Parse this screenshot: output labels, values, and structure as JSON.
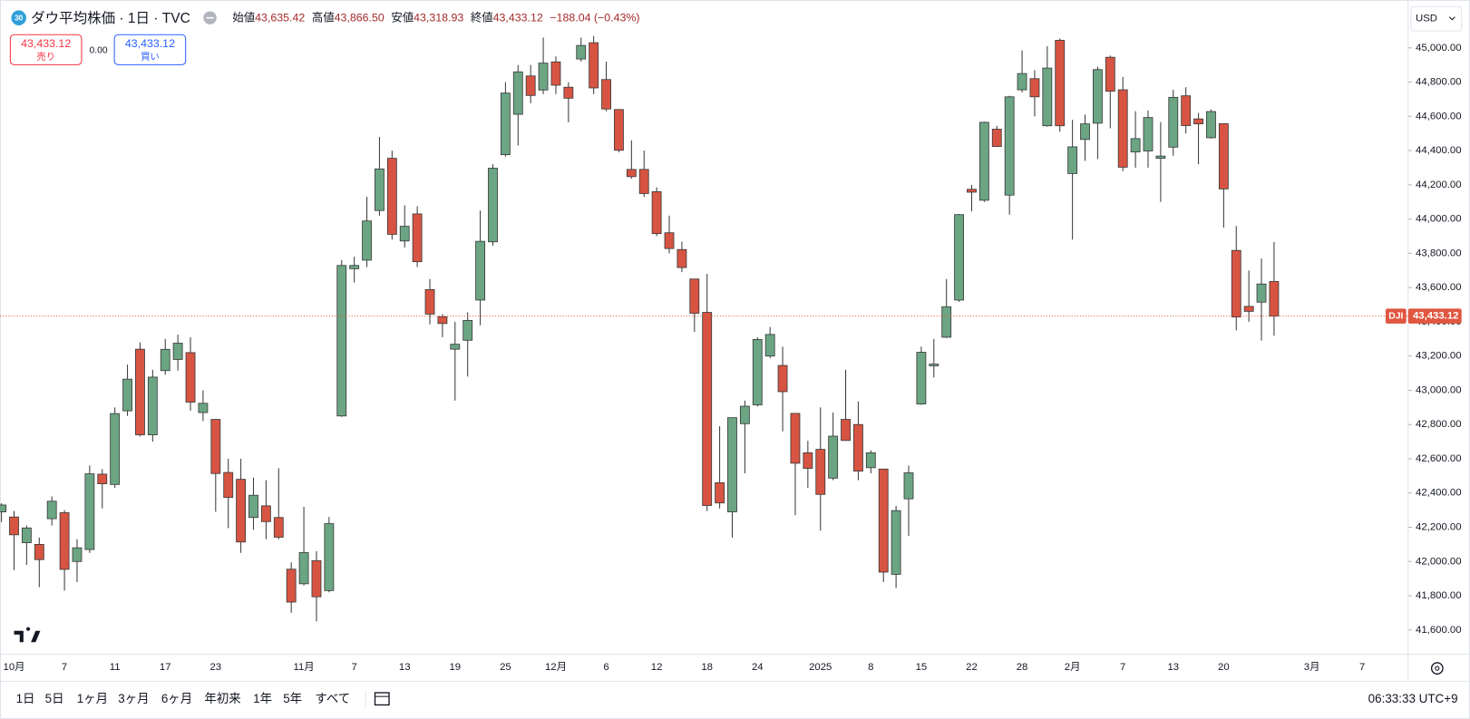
{
  "header": {
    "badge": "30",
    "title": "ダウ平均株価 · 1日 · TVC",
    "ohlc": [
      {
        "label": "始値",
        "value": "43,635.42"
      },
      {
        "label": "高値",
        "value": "43,866.50"
      },
      {
        "label": "安値",
        "value": "43,318.93"
      },
      {
        "label": "終値",
        "value": "43,433.12"
      }
    ],
    "change": "−188.04 (−0.43%)"
  },
  "trade": {
    "sell_price": "43,433.12",
    "sell": "売り",
    "spread": "0.00",
    "buy_price": "43,433.12",
    "buy": "買い"
  },
  "currency": "USD",
  "toolbar": {
    "ranges": [
      "1日",
      "5日",
      "1ヶ月",
      "3ヶ月",
      "6ヶ月",
      "年初来",
      "1年",
      "5年",
      "すべて"
    ],
    "time": "06:33:33 UTC+9"
  },
  "chart_data": {
    "type": "candlestick",
    "categories": [
      null,
      "10月",
      null,
      null,
      null,
      "7",
      null,
      null,
      null,
      "11",
      null,
      null,
      null,
      "17",
      null,
      null,
      null,
      "23",
      null,
      null,
      null,
      null,
      null,
      null,
      "11月",
      null,
      null,
      null,
      "7",
      null,
      null,
      null,
      "13",
      null,
      null,
      null,
      "19",
      null,
      null,
      null,
      "25",
      null,
      null,
      null,
      "12月",
      null,
      null,
      null,
      "6",
      null,
      null,
      null,
      "12",
      null,
      null,
      null,
      "18",
      null,
      null,
      null,
      "24",
      null,
      null,
      null,
      null,
      "2025",
      null,
      null,
      null,
      "8",
      null,
      null,
      null,
      "15",
      null,
      null,
      null,
      "22",
      null,
      null,
      null,
      "28",
      null,
      null,
      null,
      "2月",
      null,
      null,
      null,
      "7",
      null,
      null,
      null,
      "13",
      null,
      null,
      null,
      "20",
      null,
      null,
      null,
      null,
      null,
      null,
      "3月",
      null,
      null,
      null,
      "7"
    ],
    "open": [
      42290,
      42260,
      42110,
      42100,
      42250,
      42285,
      42000,
      42070,
      42510,
      42450,
      42880,
      43240,
      42740,
      43115,
      43180,
      43220,
      42870,
      42830,
      42520,
      42480,
      42257,
      42325,
      42257,
      41955,
      41870,
      42005,
      41830,
      42850,
      43710,
      43760,
      44050,
      44355,
      43872,
      44030,
      43588,
      43430,
      43240,
      43292,
      43527,
      43867,
      44376,
      44612,
      44836,
      44754,
      44918,
      44770,
      44935,
      45030,
      44815,
      44640,
      44290,
      44290,
      44160,
      43920,
      43822,
      43650,
      43455,
      42460,
      42290,
      42805,
      42915,
      43200,
      43145,
      42865,
      42635,
      42655,
      42487,
      42830,
      42800,
      42548,
      42540,
      41925,
      42366,
      42920,
      43143,
      43310,
      43527,
      44174,
      44110,
      44525,
      44140,
      44755,
      44820,
      44545,
      45044,
      44266,
      44465,
      44560,
      44945,
      44755,
      44392,
      44398,
      44355,
      44420,
      44720,
      44585,
      44475,
      44557,
      43817,
      43490,
      43515,
      43635.42,
      null,
      null,
      null,
      null,
      null,
      null,
      null
    ],
    "high": [
      42340,
      42295,
      42210,
      42140,
      42380,
      42300,
      42130,
      42560,
      42540,
      42900,
      43150,
      43280,
      43120,
      43300,
      43325,
      43310,
      43000,
      42830,
      42600,
      42600,
      42490,
      42475,
      42545,
      41995,
      42320,
      42060,
      42260,
      43760,
      43780,
      44130,
      44480,
      44400,
      44080,
      44075,
      43650,
      43445,
      43400,
      43455,
      44050,
      44320,
      44800,
      44900,
      44900,
      45060,
      44950,
      44800,
      45060,
      45070,
      44920,
      44640,
      44460,
      44400,
      44185,
      44020,
      43868,
      43650,
      43680,
      42790,
      42840,
      42940,
      43310,
      43370,
      43255,
      42865,
      42705,
      42900,
      42870,
      43120,
      42935,
      42650,
      42540,
      42325,
      42560,
      43255,
      43300,
      43650,
      44030,
      44200,
      44570,
      44545,
      44720,
      44985,
      44870,
      45010,
      45055,
      44580,
      44610,
      44890,
      44955,
      44830,
      44630,
      44635,
      44567,
      44755,
      44770,
      44620,
      44640,
      44560,
      43960,
      43700,
      43770,
      43866.5,
      null,
      null,
      null,
      null,
      null,
      null,
      null
    ],
    "low": [
      42230,
      41950,
      41980,
      41850,
      42210,
      41830,
      41880,
      42050,
      42310,
      42430,
      42850,
      42730,
      42700,
      43090,
      43115,
      42880,
      42820,
      42290,
      42195,
      42050,
      42185,
      42130,
      42130,
      41700,
      41860,
      41650,
      41820,
      42845,
      43630,
      43720,
      44020,
      43880,
      43834,
      43720,
      43385,
      43310,
      42940,
      43080,
      43380,
      43845,
      44365,
      44430,
      44677,
      44730,
      44730,
      44565,
      44920,
      44730,
      44630,
      44390,
      44235,
      44130,
      43900,
      43800,
      43690,
      43340,
      42295,
      42310,
      42140,
      42515,
      42905,
      43188,
      42760,
      42270,
      42430,
      42180,
      42475,
      42705,
      42475,
      42515,
      41880,
      41845,
      42150,
      42915,
      43075,
      43305,
      43516,
      44045,
      44100,
      44424,
      44025,
      44740,
      44600,
      44540,
      44510,
      43880,
      44340,
      44350,
      44530,
      44280,
      44300,
      44300,
      44100,
      44370,
      44500,
      44320,
      44470,
      43950,
      43350,
      43400,
      43290,
      43318.93,
      null,
      null,
      null,
      null,
      null,
      null,
      null
    ],
    "close": [
      42330,
      42156,
      42196,
      42011,
      42352,
      41954,
      42080,
      42512,
      42454,
      42864,
      43065,
      42740,
      43077,
      43239,
      43275,
      42931,
      42924,
      42514,
      42374,
      42114,
      42387,
      42233,
      42142,
      41763,
      42052,
      41794,
      42221,
      43729,
      43729,
      43989,
      44293,
      43911,
      43958,
      43751,
      43445,
      43390,
      43269,
      43408,
      43870,
      44297,
      44736,
      44860,
      44722,
      44911,
      44782,
      44706,
      45014,
      44766,
      44643,
      44402,
      44248,
      44149,
      43915,
      43828,
      43717,
      43450,
      42327,
      42342,
      42840,
      42907,
      43297,
      43326,
      42992,
      42574,
      42544,
      42392,
      42732,
      42707,
      42528,
      42635,
      41938,
      42297,
      42518,
      43222,
      43153,
      43488,
      44026,
      44157,
      44565,
      44424,
      44714,
      44850,
      44714,
      44882,
      44545,
      44422,
      44556,
      44873,
      44747,
      44303,
      44470,
      44593,
      44368,
      44711,
      44546,
      44556,
      44628,
      44176,
      43428,
      43461,
      43621,
      43433.12,
      null,
      null,
      null,
      null,
      null,
      null,
      null
    ],
    "up_color": "#6ba583",
    "down_color": "#d75442",
    "wick_color": "#3a3a3a",
    "line_color": "#e0563f",
    "ylim": [
      41458,
      45252
    ],
    "yticks": [
      {
        "value": 41600,
        "label": "41,600.00"
      },
      {
        "value": 41800,
        "label": "41,800.00"
      },
      {
        "value": 42000,
        "label": "42,000.00"
      },
      {
        "value": 42200,
        "label": "42,200.00"
      },
      {
        "value": 42400,
        "label": "42,400.00"
      },
      {
        "value": 42600,
        "label": "42,600.00"
      },
      {
        "value": 42800,
        "label": "42,800.00"
      },
      {
        "value": 43000,
        "label": "43,000.00"
      },
      {
        "value": 43200,
        "label": "43,200.00"
      },
      {
        "value": 43400,
        "label": "43,400.00"
      },
      {
        "value": 43600,
        "label": "43,600.00"
      },
      {
        "value": 43800,
        "label": "43,800.00"
      },
      {
        "value": 44000,
        "label": "44,000.00"
      },
      {
        "value": 44200,
        "label": "44,200.00"
      },
      {
        "value": 44400,
        "label": "44,400.00"
      },
      {
        "value": 44600,
        "label": "44,600.00"
      },
      {
        "value": 44800,
        "label": "44,800.00"
      },
      {
        "value": 45000,
        "label": "45,000.00"
      }
    ],
    "price_line": {
      "symbol": "DJI",
      "label": "43,433.12"
    }
  }
}
